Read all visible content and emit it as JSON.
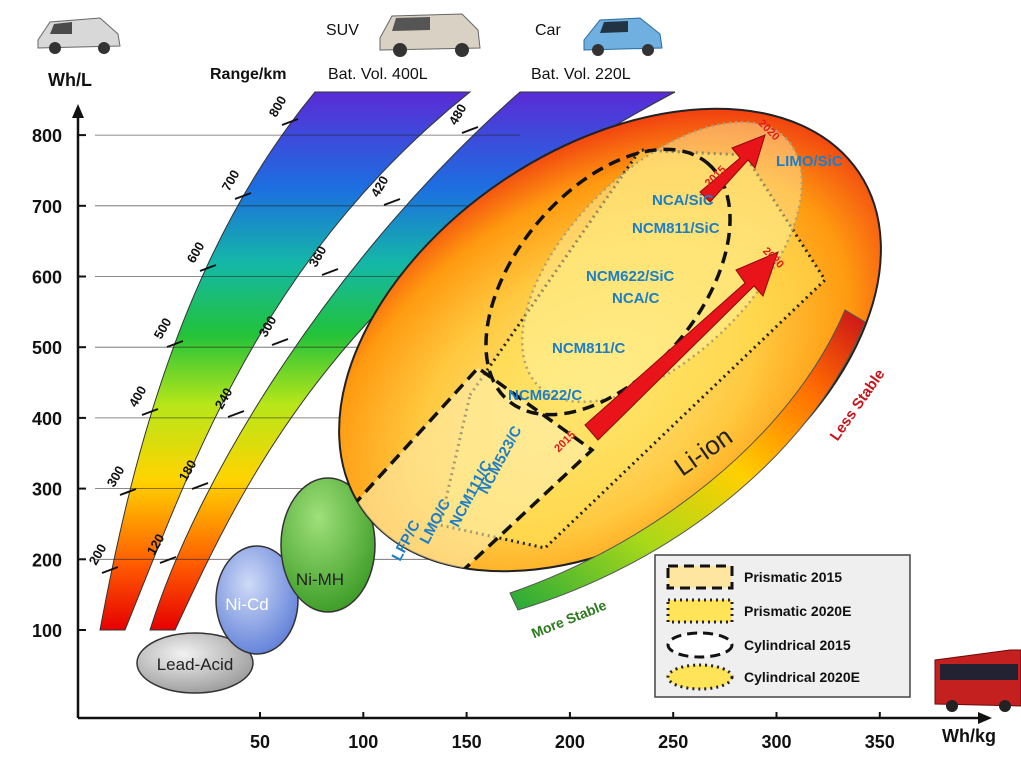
{
  "axes": {
    "y_unit": "Wh/L",
    "x_unit": "Wh/kg",
    "y_ticks": [
      "100",
      "200",
      "300",
      "400",
      "500",
      "600",
      "700",
      "800"
    ],
    "x_ticks": [
      "50",
      "100",
      "150",
      "200",
      "250",
      "300",
      "350"
    ]
  },
  "header": {
    "range_label": "Range/km",
    "suv_label": "SUV",
    "suv_volume": "Bat. Vol. 400L",
    "car_label": "Car",
    "car_volume": "Bat. Vol. 220L"
  },
  "range_bands": {
    "suv_ticks": [
      "200",
      "300",
      "400",
      "500",
      "600",
      "700",
      "800"
    ],
    "car_ticks": [
      "120",
      "180",
      "240",
      "300",
      "360",
      "420",
      "480"
    ]
  },
  "chemistries": {
    "lead_acid": "Lead-Acid",
    "ni_cd": "Ni-Cd",
    "ni_mh": "Ni-MH",
    "li_ion": "Li-ion"
  },
  "cathodes": [
    "LFP/C",
    "LMO/C",
    "NCM111/C",
    "NCM523/C",
    "NCM622/C",
    "NCM811/C",
    "NCA/C",
    "NCM622/SiC",
    "NCM811/SiC",
    "NCA/SiC",
    "LIMO/SiC"
  ],
  "arrows": {
    "start_year": "2015",
    "end_year": "2020",
    "upper_start": "2015",
    "upper_end": "2020"
  },
  "stability": {
    "less": "Less Stable",
    "more": "More Stable"
  },
  "legend": [
    {
      "label": "Prismatic  2015"
    },
    {
      "label": "Prismatic  2020E"
    },
    {
      "label": "Cylindrical 2015"
    },
    {
      "label": "Cylindrical 2020E"
    }
  ],
  "colors": {
    "cathode_text": "#1c7ec9",
    "year_text": "#e01b1b",
    "arrow_red": "#e8141a",
    "less_stable": "#c8141a",
    "more_stable": "#2d7a1e"
  },
  "icons": {
    "top_left": "electric-car-icon",
    "suv": "suv-icon",
    "car": "compact-car-icon",
    "bus": "bus-icon"
  }
}
